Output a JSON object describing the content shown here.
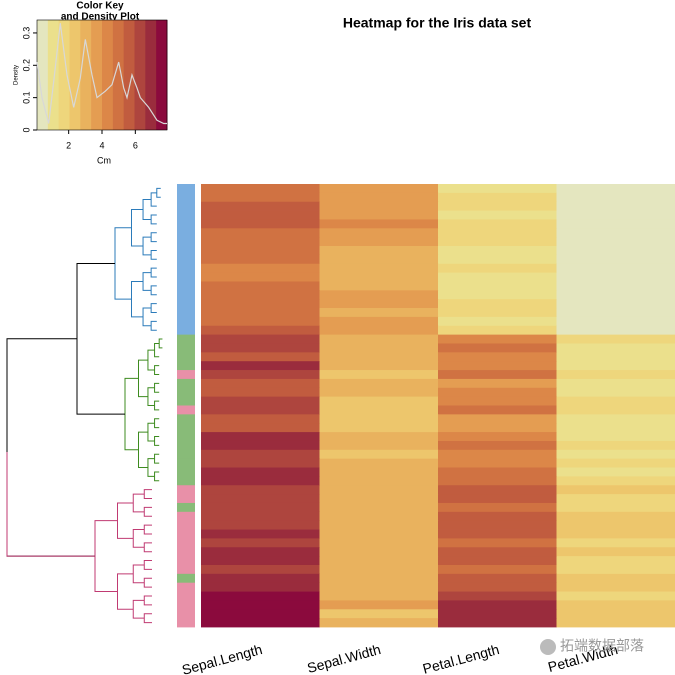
{
  "chart_data": {
    "type": "heatmap",
    "title": "Heatmap for the Iris data set",
    "columns": [
      "Sepal.Length",
      "Sepal.Width",
      "Petal.Length",
      "Petal.Width"
    ],
    "values": [
      [
        5.1,
        3.5,
        1.4,
        0.2
      ],
      [
        5.0,
        3.4,
        1.5,
        0.2
      ],
      [
        5.4,
        3.9,
        1.7,
        0.4
      ],
      [
        5.8,
        4.0,
        1.2,
        0.2
      ],
      [
        5.7,
        4.4,
        1.5,
        0.4
      ],
      [
        5.2,
        3.5,
        1.5,
        0.2
      ],
      [
        5.1,
        3.8,
        1.9,
        0.4
      ],
      [
        5.0,
        3.3,
        1.4,
        0.2
      ],
      [
        4.8,
        3.0,
        1.4,
        0.1
      ],
      [
        4.6,
        3.1,
        1.5,
        0.2
      ],
      [
        4.4,
        2.9,
        1.4,
        0.2
      ],
      [
        5.0,
        3.2,
        1.2,
        0.2
      ],
      [
        5.1,
        3.5,
        1.4,
        0.3
      ],
      [
        5.2,
        3.4,
        1.5,
        0.2
      ],
      [
        4.9,
        3.1,
        1.5,
        0.1
      ],
      [
        5.0,
        3.6,
        1.4,
        0.2
      ],
      [
        5.3,
        3.7,
        1.5,
        0.2
      ],
      [
        6.0,
        2.9,
        4.5,
        1.5
      ],
      [
        6.1,
        2.8,
        4.7,
        1.2
      ],
      [
        5.7,
        2.8,
        4.1,
        1.3
      ],
      [
        6.6,
        3.0,
        4.4,
        1.4
      ],
      [
        6.3,
        2.5,
        5.0,
        1.9
      ],
      [
        5.6,
        2.9,
        3.6,
        1.3
      ],
      [
        5.8,
        2.7,
        4.1,
        1.0
      ],
      [
        6.2,
        2.2,
        4.5,
        1.5
      ],
      [
        6.0,
        2.2,
        5.0,
        1.5
      ],
      [
        5.6,
        2.5,
        3.9,
        1.1
      ],
      [
        5.5,
        2.4,
        3.8,
        1.1
      ],
      [
        6.7,
        3.1,
        4.4,
        1.4
      ],
      [
        6.9,
        3.1,
        4.9,
        1.5
      ],
      [
        6.3,
        2.3,
        4.4,
        1.3
      ],
      [
        6.5,
        2.8,
        4.6,
        1.5
      ],
      [
        6.8,
        2.8,
        4.8,
        1.4
      ],
      [
        6.7,
        3.0,
        5.0,
        1.7
      ],
      [
        6.4,
        2.8,
        5.6,
        2.1
      ],
      [
        6.3,
        2.9,
        5.6,
        1.8
      ],
      [
        6.1,
        3.0,
        4.9,
        1.8
      ],
      [
        6.5,
        3.0,
        5.8,
        2.2
      ],
      [
        6.4,
        3.2,
        5.3,
        2.3
      ],
      [
        6.7,
        3.3,
        5.7,
        2.5
      ],
      [
        6.0,
        3.0,
        4.8,
        1.8
      ],
      [
        6.9,
        3.2,
        5.7,
        2.3
      ],
      [
        7.2,
        3.0,
        5.8,
        1.6
      ],
      [
        6.3,
        2.7,
        4.9,
        1.8
      ],
      [
        7.1,
        3.0,
        5.9,
        2.1
      ],
      [
        6.8,
        3.2,
        5.9,
        2.3
      ],
      [
        7.4,
        2.8,
        6.1,
        1.9
      ],
      [
        7.7,
        3.8,
        6.7,
        2.2
      ],
      [
        7.7,
        2.6,
        6.9,
        2.3
      ],
      [
        7.6,
        3.0,
        6.6,
        2.1
      ]
    ],
    "row_side_colors": [
      "#7aaee0",
      "#7aaee0",
      "#7aaee0",
      "#7aaee0",
      "#7aaee0",
      "#7aaee0",
      "#7aaee0",
      "#7aaee0",
      "#7aaee0",
      "#7aaee0",
      "#7aaee0",
      "#7aaee0",
      "#7aaee0",
      "#7aaee0",
      "#7aaee0",
      "#7aaee0",
      "#7aaee0",
      "#88bb78",
      "#88bb78",
      "#88bb78",
      "#88bb78",
      "#e890a8",
      "#88bb78",
      "#88bb78",
      "#88bb78",
      "#e890a8",
      "#88bb78",
      "#88bb78",
      "#88bb78",
      "#88bb78",
      "#88bb78",
      "#88bb78",
      "#88bb78",
      "#88bb78",
      "#e890a8",
      "#e890a8",
      "#88bb78",
      "#e890a8",
      "#e890a8",
      "#e890a8",
      "#e890a8",
      "#e890a8",
      "#e890a8",
      "#e890a8",
      "#88bb78",
      "#e890a8",
      "#e890a8",
      "#e890a8",
      "#e890a8",
      "#e890a8"
    ],
    "palette": [
      "#e4e6bf",
      "#ebe08c",
      "#eed67c",
      "#edc66c",
      "#e9b25e",
      "#e49d52",
      "#dc8748",
      "#d07242",
      "#c15c3f",
      "#ae453e",
      "#9a2c3d",
      "#8b0a3d"
    ],
    "zlim": [
      0.1,
      7.9
    ],
    "dendrogram_colors": [
      "#2b7bba",
      "#3d8b1f",
      "#c03a72",
      "#000000"
    ],
    "color_key": {
      "title": "Color Key",
      "subtitle": "and Density Plot",
      "xlabel": "Cm",
      "ylabel": "Density",
      "xlim": [
        0.1,
        7.9
      ],
      "xticks": [
        2,
        4,
        6
      ],
      "ylim": [
        0,
        0.34
      ],
      "yticks": [
        0,
        0.1,
        0.2,
        0.3
      ],
      "density_x": [
        0.1,
        0.4,
        0.8,
        1.1,
        1.5,
        1.9,
        2.3,
        2.7,
        3.0,
        3.4,
        3.7,
        4.2,
        4.6,
        5.0,
        5.3,
        5.5,
        5.8,
        6.1,
        6.3,
        6.8,
        7.3,
        7.7,
        7.9
      ],
      "density_y": [
        0.21,
        0.1,
        0.02,
        0.15,
        0.33,
        0.17,
        0.07,
        0.16,
        0.28,
        0.17,
        0.1,
        0.12,
        0.14,
        0.21,
        0.13,
        0.1,
        0.17,
        0.13,
        0.1,
        0.07,
        0.03,
        0.02,
        0.02
      ],
      "line_color": "#d8d8d8"
    }
  },
  "watermark": "拓端数据部落"
}
